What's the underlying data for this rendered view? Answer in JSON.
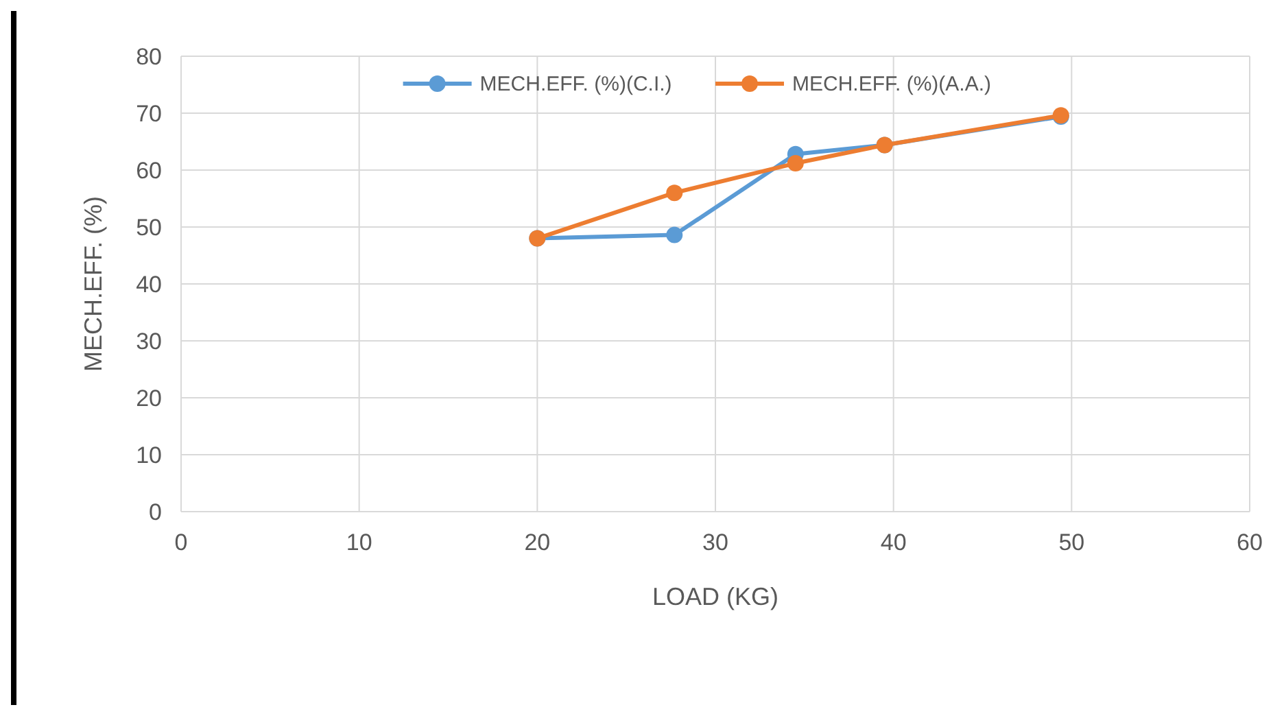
{
  "chart_data": {
    "type": "line",
    "xlabel": "LOAD (KG)",
    "ylabel": "MECH.EFF. (%)",
    "xlim": [
      0,
      60
    ],
    "xticks": [
      0,
      10,
      20,
      30,
      40,
      50,
      60
    ],
    "ylim": [
      0,
      80
    ],
    "yticks": [
      0,
      10,
      20,
      30,
      40,
      50,
      60,
      70,
      80
    ],
    "grid": true,
    "legend": "top",
    "marker": "circle",
    "line_style": "solid",
    "x": [
      20,
      27.7,
      34.5,
      39.5,
      49.4
    ],
    "series": [
      {
        "name": "MECH.EFF. (%)(C.I.)",
        "color": "#5b9bd5",
        "values": [
          48,
          48.6,
          62.8,
          64.4,
          69.4
        ]
      },
      {
        "name": "MECH.EFF. (%)(A.A.)",
        "color": "#ed7d31",
        "values": [
          48,
          56,
          61.2,
          64.4,
          69.6
        ]
      }
    ]
  }
}
